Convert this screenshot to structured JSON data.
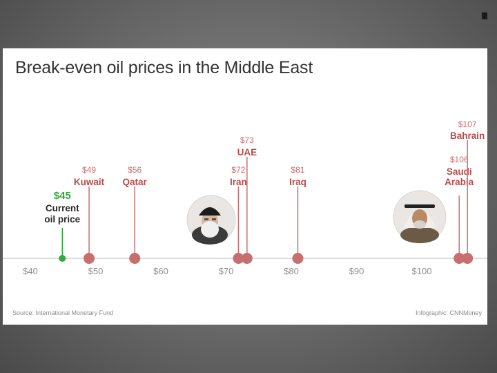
{
  "chart_data": {
    "type": "scatter",
    "title": "Break-even oil prices in the Middle East",
    "xlim": [
      40,
      110
    ],
    "x_ticks": [
      {
        "value": 40,
        "label": "$40"
      },
      {
        "value": 50,
        "label": "$50"
      },
      {
        "value": 60,
        "label": "$60"
      },
      {
        "value": 70,
        "label": "$70"
      },
      {
        "value": 80,
        "label": "$80"
      },
      {
        "value": 90,
        "label": "$90"
      },
      {
        "value": 100,
        "label": "$100"
      }
    ],
    "reference": {
      "value": 45,
      "price_label": "$45",
      "name_lines": [
        "Current",
        "oil price"
      ],
      "color": "#2eab3a"
    },
    "points": [
      {
        "country_lines": [
          "Kuwait"
        ],
        "price_label": "$49",
        "value": 49
      },
      {
        "country_lines": [
          "Qatar"
        ],
        "price_label": "$56",
        "value": 56
      },
      {
        "country_lines": [
          "Iran"
        ],
        "price_label": "$72",
        "value": 72
      },
      {
        "country_lines": [
          "UAE"
        ],
        "price_label": "$73",
        "value": 73
      },
      {
        "country_lines": [
          "Iraq"
        ],
        "price_label": "$81",
        "value": 81
      },
      {
        "country_lines": [
          "Saudi",
          "Arabia"
        ],
        "price_label": "$106",
        "value": 106
      },
      {
        "country_lines": [
          "Bahrain"
        ],
        "price_label": "$107",
        "value": 107
      }
    ],
    "portraits": [
      "ayatollah-portrait",
      "saudi-king-portrait"
    ],
    "colors": {
      "point": "#c96e6e",
      "country": "#b84a4a",
      "price": "#c96e6e",
      "axis": "#cfcfcf",
      "tick": "#8f8f8f"
    }
  },
  "footer": {
    "source": "Source: International Monetary Fund",
    "credit": "Infographic: CNNMoney"
  }
}
